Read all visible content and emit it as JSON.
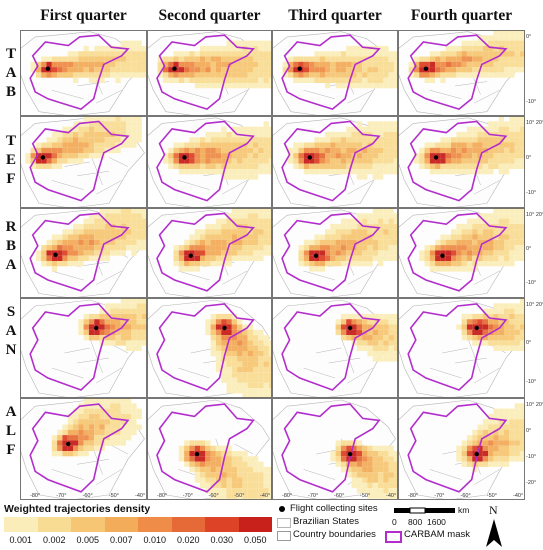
{
  "header": {
    "quarters": [
      "First quarter",
      "Second quarter",
      "Third quarter",
      "Fourth quarter"
    ]
  },
  "rows": [
    {
      "site": "TAB",
      "letters": [
        "T",
        "A",
        "B"
      ]
    },
    {
      "site": "TEF",
      "letters": [
        "T",
        "E",
        "F"
      ]
    },
    {
      "site": "RBA",
      "letters": [
        "R",
        "B",
        "A"
      ]
    },
    {
      "site": "SAN",
      "letters": [
        "S",
        "A",
        "N"
      ]
    },
    {
      "site": "ALF",
      "letters": [
        "A",
        "L",
        "F"
      ]
    }
  ],
  "x_ticks": [
    "-80°",
    "-70°",
    "-60°",
    "-50°",
    "-40°"
  ],
  "y_ticks_by_row": [
    [
      "0°",
      "-10°"
    ],
    [
      "10° 20°",
      "0°",
      "-10°"
    ],
    [
      "10° 20°",
      "0°",
      "-10°"
    ],
    [
      "10° 20°",
      "0°",
      "-10°"
    ],
    [
      "10° 20°",
      "0°",
      "-10°",
      "-20°"
    ]
  ],
  "legend": {
    "title": "Weighted trajectories density",
    "bins": [
      "0.001",
      "0.002",
      "0.005",
      "0.007",
      "0.010",
      "0.020",
      "0.030",
      "0.050"
    ],
    "colors": [
      "#fbedb9",
      "#f9dc94",
      "#f6c674",
      "#f2ac5a",
      "#ee8c48",
      "#e66a38",
      "#dc4327",
      "#c8201b"
    ],
    "symbols": {
      "flight_sites": "Flight collecting sites",
      "brazilian_states": "Brazilian States",
      "country_boundaries": "Country boundaries",
      "carbam_mask": "CARBAM mask"
    },
    "scale": {
      "unit": "km",
      "labels": [
        "0",
        "800",
        "1600"
      ]
    },
    "north": "N"
  },
  "colors": {
    "mask": "#b32dcc",
    "boundary": "#b5b5b5",
    "site_marker": "#000000",
    "panel_border": "#555555"
  },
  "panels": [
    {
      "row": 0,
      "col": 0,
      "site": [
        0.22,
        0.45
      ],
      "end": [
        0.92,
        0.35
      ],
      "spread": 0.13,
      "peak": 0.7
    },
    {
      "row": 0,
      "col": 1,
      "site": [
        0.22,
        0.45
      ],
      "end": [
        0.95,
        0.4
      ],
      "spread": 0.17,
      "peak": 0.72
    },
    {
      "row": 0,
      "col": 2,
      "site": [
        0.22,
        0.45
      ],
      "end": [
        0.85,
        0.45
      ],
      "spread": 0.15,
      "peak": 0.7
    },
    {
      "row": 0,
      "col": 3,
      "site": [
        0.22,
        0.45
      ],
      "end": [
        0.95,
        0.25
      ],
      "spread": 0.15,
      "peak": 0.75
    },
    {
      "row": 1,
      "col": 0,
      "site": [
        0.18,
        0.45
      ],
      "end": [
        0.75,
        0.15
      ],
      "spread": 0.14,
      "peak": 0.7
    },
    {
      "row": 1,
      "col": 1,
      "site": [
        0.3,
        0.45
      ],
      "end": [
        0.9,
        0.38
      ],
      "spread": 0.17,
      "peak": 0.74
    },
    {
      "row": 1,
      "col": 2,
      "site": [
        0.3,
        0.45
      ],
      "end": [
        0.9,
        0.35
      ],
      "spread": 0.18,
      "peak": 0.72
    },
    {
      "row": 1,
      "col": 3,
      "site": [
        0.3,
        0.45
      ],
      "end": [
        0.95,
        0.3
      ],
      "spread": 0.17,
      "peak": 0.72
    },
    {
      "row": 2,
      "col": 0,
      "site": [
        0.28,
        0.52
      ],
      "end": [
        0.88,
        0.2
      ],
      "spread": 0.16,
      "peak": 0.75
    },
    {
      "row": 2,
      "col": 1,
      "site": [
        0.35,
        0.53
      ],
      "end": [
        0.9,
        0.25
      ],
      "spread": 0.17,
      "peak": 0.75
    },
    {
      "row": 2,
      "col": 2,
      "site": [
        0.35,
        0.53
      ],
      "end": [
        0.88,
        0.3
      ],
      "spread": 0.17,
      "peak": 0.74
    },
    {
      "row": 2,
      "col": 3,
      "site": [
        0.35,
        0.53
      ],
      "end": [
        0.9,
        0.3
      ],
      "spread": 0.18,
      "peak": 0.74
    },
    {
      "row": 3,
      "col": 0,
      "site": [
        0.6,
        0.3
      ],
      "end": [
        0.95,
        0.25
      ],
      "spread": 0.15,
      "peak": 0.8
    },
    {
      "row": 3,
      "col": 1,
      "site": [
        0.62,
        0.3
      ],
      "end": [
        0.9,
        0.75
      ],
      "spread": 0.17,
      "peak": 0.72
    },
    {
      "row": 3,
      "col": 2,
      "site": [
        0.62,
        0.3
      ],
      "end": [
        0.95,
        0.4
      ],
      "spread": 0.14,
      "peak": 0.72
    },
    {
      "row": 3,
      "col": 3,
      "site": [
        0.62,
        0.3
      ],
      "end": [
        0.95,
        0.3
      ],
      "spread": 0.15,
      "peak": 0.8
    },
    {
      "row": 4,
      "col": 0,
      "site": [
        0.38,
        0.45
      ],
      "end": [
        0.7,
        0.2
      ],
      "spread": 0.15,
      "peak": 0.75
    },
    {
      "row": 4,
      "col": 1,
      "site": [
        0.4,
        0.55
      ],
      "end": [
        0.8,
        0.85
      ],
      "spread": 0.16,
      "peak": 0.72
    },
    {
      "row": 4,
      "col": 2,
      "site": [
        0.62,
        0.55
      ],
      "end": [
        0.9,
        0.75
      ],
      "spread": 0.15,
      "peak": 0.78
    },
    {
      "row": 4,
      "col": 3,
      "site": [
        0.62,
        0.55
      ],
      "end": [
        0.92,
        0.35
      ],
      "spread": 0.16,
      "peak": 0.75
    }
  ]
}
